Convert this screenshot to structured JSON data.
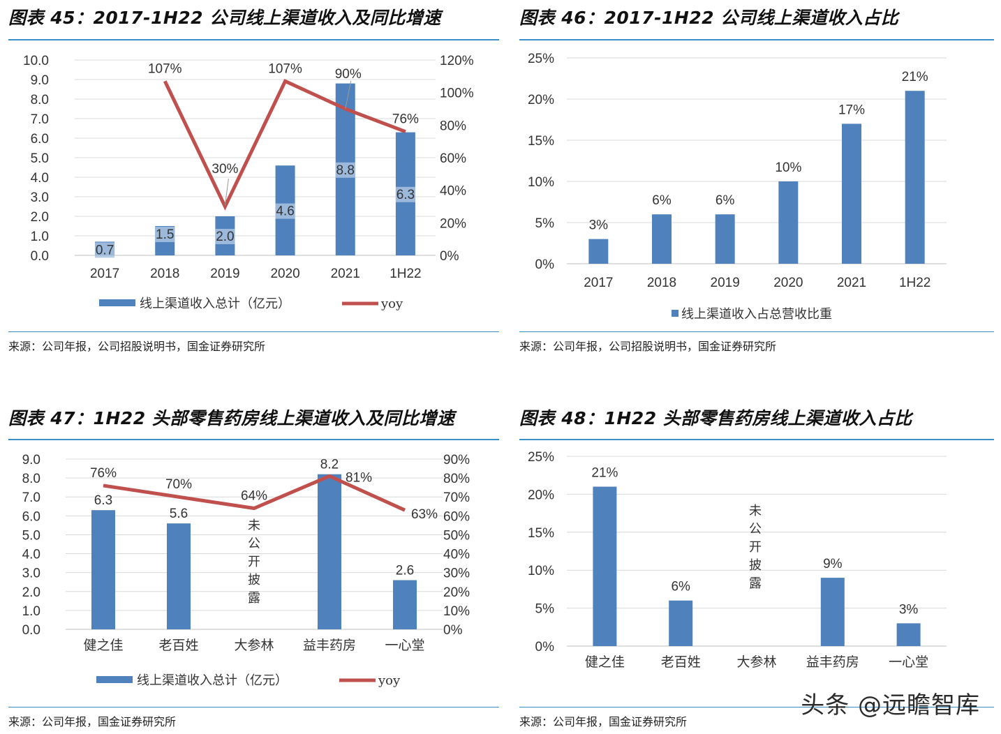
{
  "panels": [
    {
      "title": "图表 45：2017-1H22 公司线上渠道收入及同比增速",
      "source": "来源：公司年报，公司招股说明书，国金证券研究所"
    },
    {
      "title": "图表 46：2017-1H22 公司线上渠道收入占比",
      "source": "来源：公司年报，公司招股说明书，国金证券研究所"
    },
    {
      "title": "图表 47：1H22 头部零售药房线上渠道收入及同比增速",
      "source": "来源：公司年报，国金证券研究所"
    },
    {
      "title": "图表 48：1H22 头部零售药房线上渠道收入占比",
      "source": "来源：公司年报，国金证券研究所"
    }
  ],
  "watermark": "头条 @远瞻智库",
  "colors": {
    "bar": "#4f81bd",
    "line": "#c0504d",
    "rule": "#3a8fc8",
    "grid": "#d9d9d9"
  },
  "chart_data": [
    {
      "type": "bar+line",
      "categories": [
        "2017",
        "2018",
        "2019",
        "2020",
        "2021",
        "1H22"
      ],
      "series": [
        {
          "name": "线上渠道收入总计（亿元）",
          "type": "bar",
          "axis": "left",
          "values": [
            0.7,
            1.5,
            2.0,
            4.6,
            8.8,
            6.3
          ],
          "labels": [
            "0.7",
            "1.5",
            "2.0",
            "4.6",
            "8.8",
            "6.3"
          ]
        },
        {
          "name": "yoy",
          "type": "line",
          "axis": "right",
          "values": [
            null,
            107,
            30,
            107,
            90,
            76
          ],
          "labels": [
            "",
            "107%",
            "30%",
            "107%",
            "90%",
            "76%"
          ]
        }
      ],
      "ylim": [
        0,
        10
      ],
      "yticks": [
        "0.0",
        "1.0",
        "2.0",
        "3.0",
        "4.0",
        "5.0",
        "6.0",
        "7.0",
        "8.0",
        "9.0",
        "10.0"
      ],
      "y2lim": [
        0,
        120
      ],
      "y2ticks": [
        "0%",
        "20%",
        "40%",
        "60%",
        "80%",
        "100%",
        "120%"
      ],
      "grid": true,
      "legend": "bottom"
    },
    {
      "type": "bar",
      "categories": [
        "2017",
        "2018",
        "2019",
        "2020",
        "2021",
        "1H22"
      ],
      "series": [
        {
          "name": "线上渠道收入占总营收比重",
          "values": [
            3,
            6,
            6,
            10,
            17,
            21
          ],
          "labels": [
            "3%",
            "6%",
            "6%",
            "10%",
            "17%",
            "21%"
          ]
        }
      ],
      "ylim": [
        0,
        25
      ],
      "yticks": [
        "0%",
        "5%",
        "10%",
        "15%",
        "20%",
        "25%"
      ],
      "grid": true,
      "legend": "bottom"
    },
    {
      "type": "bar+line",
      "categories": [
        "健之佳",
        "老百姓",
        "大参林",
        "益丰药房",
        "一心堂"
      ],
      "series": [
        {
          "name": "线上渠道收入总计（亿元）",
          "type": "bar",
          "axis": "left",
          "values": [
            6.3,
            5.6,
            null,
            8.2,
            2.6
          ],
          "labels": [
            "6.3",
            "5.6",
            "",
            "8.2",
            "2.6"
          ]
        },
        {
          "name": "yoy",
          "type": "line",
          "axis": "right",
          "values": [
            76,
            70,
            64,
            81,
            63
          ],
          "labels": [
            "76%",
            "70%",
            "64%",
            "81%",
            "63%"
          ]
        }
      ],
      "annotation": "未公开披露",
      "ylim": [
        0,
        9
      ],
      "yticks": [
        "0.0",
        "1.0",
        "2.0",
        "3.0",
        "4.0",
        "5.0",
        "6.0",
        "7.0",
        "8.0",
        "9.0"
      ],
      "y2lim": [
        0,
        90
      ],
      "y2ticks": [
        "0%",
        "10%",
        "20%",
        "30%",
        "40%",
        "50%",
        "60%",
        "70%",
        "80%",
        "90%"
      ],
      "grid": true,
      "legend": "bottom"
    },
    {
      "type": "bar",
      "categories": [
        "健之佳",
        "老百姓",
        "大参林",
        "益丰药房",
        "一心堂"
      ],
      "series": [
        {
          "name": "",
          "values": [
            21,
            6,
            null,
            9,
            3
          ],
          "labels": [
            "21%",
            "6%",
            "",
            "9%",
            "3%"
          ]
        }
      ],
      "annotation": "未公开披露",
      "ylim": [
        0,
        25
      ],
      "yticks": [
        "0%",
        "5%",
        "10%",
        "15%",
        "20%",
        "25%"
      ],
      "grid": true,
      "legend": "none"
    }
  ]
}
